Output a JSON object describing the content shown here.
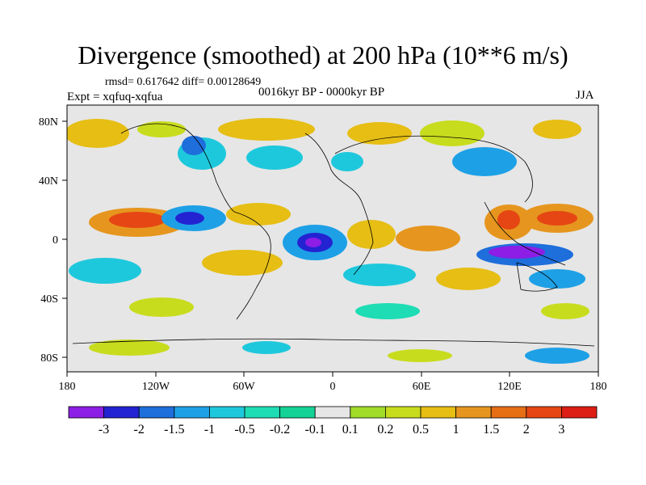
{
  "header": {
    "title": "Divergence (smoothed) at 200 hPa (10**6 m/s)",
    "stats": "rmsd= 0.617642 diff= 0.00128649",
    "experiment": "Expt = xqfuq-xqfua",
    "period": "0016kyr BP - 0000kyr BP",
    "season": "JJA"
  },
  "axes": {
    "lat_labels": [
      "80N",
      "40N",
      "0",
      "40S",
      "80S"
    ],
    "lon_labels": [
      "180",
      "120W",
      "60W",
      "0",
      "60E",
      "120E",
      "180"
    ]
  },
  "colorbar": {
    "labels": [
      "-3",
      "-2",
      "-1.5",
      "-1",
      "-0.5",
      "-0.2",
      "-0.1",
      "0.1",
      "0.2",
      "0.5",
      "1",
      "1.5",
      "2",
      "3"
    ],
    "colors": [
      "#8c1ee6",
      "#2323d2",
      "#1e6edc",
      "#1ea0e6",
      "#1ec8dc",
      "#1edcb4",
      "#14d296",
      "#e6e6e6",
      "#a0dc28",
      "#c8dc1e",
      "#e6be14",
      "#e6961e",
      "#e66e14",
      "#e64614",
      "#dc1e14"
    ]
  }
}
